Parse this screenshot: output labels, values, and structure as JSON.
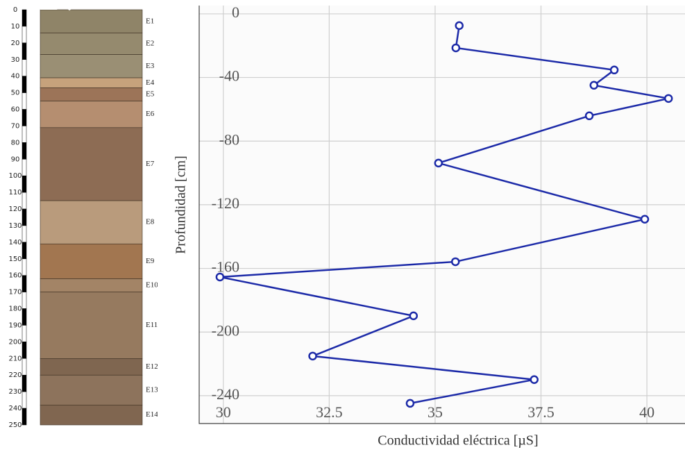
{
  "chart_data": [
    {
      "type": "profile",
      "ylim": [
        0,
        250
      ],
      "yticks": [
        0,
        10,
        20,
        30,
        40,
        50,
        60,
        70,
        80,
        90,
        100,
        110,
        120,
        130,
        140,
        150,
        160,
        170,
        180,
        190,
        200,
        210,
        220,
        230,
        240,
        250
      ],
      "layers": [
        {
          "name": "E1",
          "top": 0,
          "bottom": 14,
          "color": "#8f8468"
        },
        {
          "name": "E2",
          "top": 14,
          "bottom": 27,
          "color": "#958a6e"
        },
        {
          "name": "E3",
          "top": 27,
          "bottom": 41,
          "color": "#9a8f74"
        },
        {
          "name": "E4",
          "top": 41,
          "bottom": 47,
          "color": "#c6a27c"
        },
        {
          "name": "E5",
          "top": 47,
          "bottom": 55,
          "color": "#9c7458"
        },
        {
          "name": "E6",
          "top": 55,
          "bottom": 71,
          "color": "#b58e70"
        },
        {
          "name": "E7",
          "top": 71,
          "bottom": 115,
          "color": "#8d6c54"
        },
        {
          "name": "E8",
          "top": 115,
          "bottom": 141,
          "color": "#b99b7c"
        },
        {
          "name": "E9",
          "top": 141,
          "bottom": 162,
          "color": "#a27650"
        },
        {
          "name": "E10",
          "top": 162,
          "bottom": 170,
          "color": "#a38466"
        },
        {
          "name": "E11",
          "top": 170,
          "bottom": 210,
          "color": "#967a5f"
        },
        {
          "name": "E12",
          "top": 210,
          "bottom": 220,
          "color": "#7f6650"
        },
        {
          "name": "E13",
          "top": 220,
          "bottom": 238,
          "color": "#8d735c"
        },
        {
          "name": "E14",
          "top": 238,
          "bottom": 250,
          "color": "#806650"
        }
      ]
    },
    {
      "type": "line",
      "xlabel": "Conductividad eléctrica [µS]",
      "ylabel": "Profundidad [cm]",
      "color": "#1c2aa8",
      "grid": true,
      "xlim": [
        29.43,
        40.9
      ],
      "ylim": [
        -257.5,
        5.2
      ],
      "xticks": [
        30,
        32.5,
        35,
        37.5,
        40
      ],
      "yticks": [
        0,
        -40,
        -80,
        -120,
        -160,
        -200,
        -240
      ],
      "x": [
        35.57,
        35.49,
        39.23,
        38.75,
        40.51,
        38.64,
        35.08,
        39.95,
        35.48,
        29.92,
        34.49,
        32.11,
        37.34,
        34.41
      ],
      "y": [
        -7.4,
        -21.4,
        -35.3,
        -44.9,
        -53.2,
        -64.1,
        -93.8,
        -129.1,
        -155.8,
        -165.4,
        -189.8,
        -215.1,
        -229.9,
        -244.8
      ]
    }
  ]
}
